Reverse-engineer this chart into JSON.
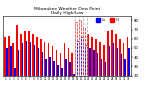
{
  "title": "Milwaukee Weather Dew Point\nDaily High/Low",
  "bar_high": [
    62,
    63,
    55,
    75,
    65,
    68,
    68,
    65,
    62,
    60,
    57,
    55,
    52,
    48,
    45,
    55,
    50,
    45,
    78,
    80,
    72,
    65,
    62,
    60,
    57,
    53,
    68,
    70,
    65,
    60,
    55,
    62
  ],
  "bar_low": [
    50,
    52,
    28,
    48,
    55,
    58,
    57,
    53,
    50,
    46,
    38,
    40,
    36,
    32,
    28,
    38,
    35,
    22,
    58,
    62,
    53,
    50,
    48,
    45,
    38,
    35,
    52,
    55,
    50,
    43,
    38,
    50
  ],
  "dashed_indices": [
    18,
    19,
    20
  ],
  "color_high": "#ff0000",
  "color_low": "#0000ff",
  "ylim": [
    20,
    85
  ],
  "yticks": [
    20,
    30,
    40,
    50,
    60,
    70,
    80
  ],
  "background": "#ffffff",
  "n_bars": 32
}
